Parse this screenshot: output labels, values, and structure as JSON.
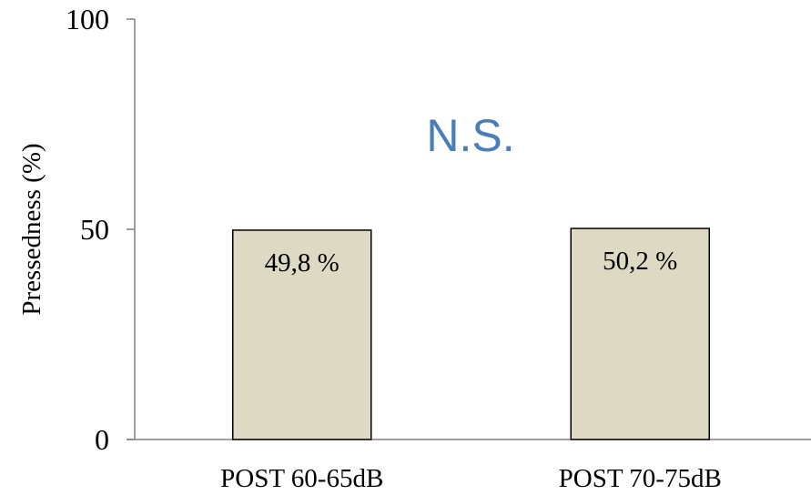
{
  "chart_data": {
    "type": "bar",
    "categories": [
      "POST 60-65dB",
      "POST 70-75dB"
    ],
    "values": [
      49.8,
      50.2
    ],
    "data_labels": [
      "49,8 %",
      "50,2 %"
    ],
    "ylabel": "Pressedness  (%)",
    "xlabel": "",
    "ylim": [
      0,
      100
    ],
    "yticks": [
      0,
      50,
      100
    ],
    "ytick_labels": [
      "0",
      "50",
      "100"
    ],
    "annotation": "N.S.",
    "grid": false,
    "legend": "none",
    "colors": {
      "bar_fill": "#ddd9c3",
      "bar_stroke": "#000000",
      "axis": "#808080",
      "annotation": "#4a7ebb",
      "text": "#000000"
    }
  }
}
